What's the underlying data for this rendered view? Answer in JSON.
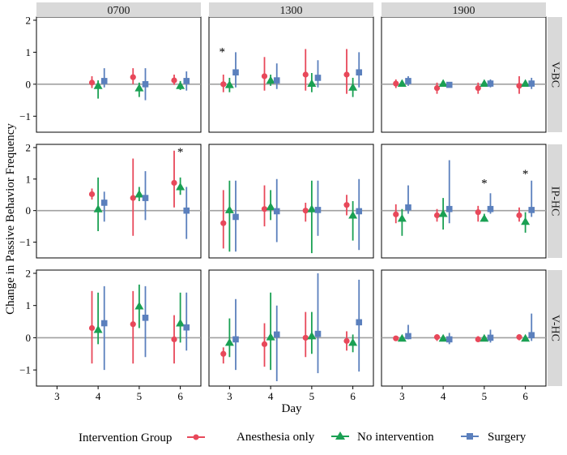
{
  "chart_data": {
    "type": "scatter",
    "subtype": "faceted point-range (mean with interval)",
    "ylabel": "Change in Passive Behavior Frequency",
    "xlabel": "Day",
    "columns": [
      "0700",
      "1300",
      "1900"
    ],
    "rows": [
      "V-BC",
      "IP-HC",
      "V-HC"
    ],
    "x_ticks": [
      3,
      4,
      5,
      6
    ],
    "x_tick_labels": [
      "3",
      "4",
      "5",
      "6"
    ],
    "xlim": [
      2.5,
      6.5
    ],
    "ylim": [
      -1.5,
      2.1
    ],
    "y_ticks": [
      -1,
      0,
      1,
      2
    ],
    "y_tick_labels": [
      "−1",
      "0",
      "1",
      "2"
    ],
    "reference_line": 0,
    "grid": false,
    "legend": {
      "position": "bottom",
      "title": "Intervention Group",
      "entries": [
        "Anesthesia only",
        "No intervention",
        "Surgery"
      ]
    },
    "series": [
      {
        "name": "Anesthesia only",
        "color": "#e8485a",
        "marker": "circle",
        "offset": -0.15
      },
      {
        "name": "No intervention",
        "color": "#1aa053",
        "marker": "triangle",
        "offset": 0.0
      },
      {
        "name": "Surgery",
        "color": "#5b80bd",
        "marker": "square",
        "offset": 0.15
      }
    ],
    "panels": [
      {
        "row": "V-BC",
        "col": "0700",
        "points": [
          {
            "series": 0,
            "day": 4,
            "y": 0.05,
            "lo": -0.12,
            "hi": 0.25
          },
          {
            "series": 1,
            "day": 4,
            "y": -0.05,
            "lo": -0.45,
            "hi": 0.12
          },
          {
            "series": 2,
            "day": 4,
            "y": 0.1,
            "lo": -0.1,
            "hi": 0.5
          },
          {
            "series": 0,
            "day": 5,
            "y": 0.22,
            "lo": 0.0,
            "hi": 0.5
          },
          {
            "series": 1,
            "day": 5,
            "y": -0.12,
            "lo": -0.4,
            "hi": 0.05
          },
          {
            "series": 2,
            "day": 5,
            "y": 0.0,
            "lo": -0.5,
            "hi": 0.5
          },
          {
            "series": 0,
            "day": 6,
            "y": 0.12,
            "lo": -0.02,
            "hi": 0.3
          },
          {
            "series": 1,
            "day": 6,
            "y": -0.05,
            "lo": -0.18,
            "hi": 0.1
          },
          {
            "series": 2,
            "day": 6,
            "y": 0.1,
            "lo": -0.2,
            "hi": 0.4
          }
        ],
        "stars": []
      },
      {
        "row": "V-BC",
        "col": "1300",
        "points": [
          {
            "series": 0,
            "day": 3,
            "y": 0.0,
            "lo": -0.25,
            "hi": 0.3
          },
          {
            "series": 1,
            "day": 3,
            "y": -0.02,
            "lo": -0.25,
            "hi": 0.2
          },
          {
            "series": 2,
            "day": 3,
            "y": 0.37,
            "lo": -0.1,
            "hi": 1.0
          },
          {
            "series": 0,
            "day": 4,
            "y": 0.25,
            "lo": -0.2,
            "hi": 0.85
          },
          {
            "series": 1,
            "day": 4,
            "y": 0.12,
            "lo": -0.05,
            "hi": 0.3
          },
          {
            "series": 2,
            "day": 4,
            "y": 0.12,
            "lo": -0.15,
            "hi": 0.65
          },
          {
            "series": 0,
            "day": 5,
            "y": 0.3,
            "lo": -0.2,
            "hi": 1.1
          },
          {
            "series": 1,
            "day": 5,
            "y": 0.02,
            "lo": -0.25,
            "hi": 0.35
          },
          {
            "series": 2,
            "day": 5,
            "y": 0.2,
            "lo": -0.1,
            "hi": 0.75
          },
          {
            "series": 0,
            "day": 6,
            "y": 0.3,
            "lo": -0.3,
            "hi": 1.1
          },
          {
            "series": 1,
            "day": 6,
            "y": -0.1,
            "lo": -0.4,
            "hi": 0.2
          },
          {
            "series": 2,
            "day": 6,
            "y": 0.37,
            "lo": -0.1,
            "hi": 1.0
          }
        ],
        "stars": [
          {
            "day": 3,
            "offset": -0.18,
            "y": 1.05
          }
        ]
      },
      {
        "row": "V-BC",
        "col": "1900",
        "points": [
          {
            "series": 0,
            "day": 3,
            "y": 0.02,
            "lo": -0.12,
            "hi": 0.15
          },
          {
            "series": 1,
            "day": 3,
            "y": 0.02,
            "lo": -0.05,
            "hi": 0.1
          },
          {
            "series": 2,
            "day": 3,
            "y": 0.1,
            "lo": -0.05,
            "hi": 0.25
          },
          {
            "series": 0,
            "day": 4,
            "y": -0.12,
            "lo": -0.3,
            "hi": 0.05
          },
          {
            "series": 1,
            "day": 4,
            "y": 0.02,
            "lo": -0.05,
            "hi": 0.08
          },
          {
            "series": 2,
            "day": 4,
            "y": -0.02,
            "lo": -0.08,
            "hi": 0.05
          },
          {
            "series": 0,
            "day": 5,
            "y": -0.12,
            "lo": -0.3,
            "hi": 0.05
          },
          {
            "series": 1,
            "day": 5,
            "y": 0.02,
            "lo": -0.05,
            "hi": 0.08
          },
          {
            "series": 2,
            "day": 5,
            "y": 0.02,
            "lo": -0.1,
            "hi": 0.15
          },
          {
            "series": 0,
            "day": 6,
            "y": -0.05,
            "lo": -0.3,
            "hi": 0.25
          },
          {
            "series": 1,
            "day": 6,
            "y": 0.02,
            "lo": -0.05,
            "hi": 0.1
          },
          {
            "series": 2,
            "day": 6,
            "y": 0.02,
            "lo": -0.15,
            "hi": 0.2
          }
        ],
        "stars": []
      },
      {
        "row": "IP-HC",
        "col": "0700",
        "points": [
          {
            "series": 0,
            "day": 4,
            "y": 0.52,
            "lo": 0.35,
            "hi": 0.7
          },
          {
            "series": 1,
            "day": 4,
            "y": 0.05,
            "lo": -0.65,
            "hi": 1.05
          },
          {
            "series": 2,
            "day": 4,
            "y": 0.25,
            "lo": -0.35,
            "hi": 0.6
          },
          {
            "series": 0,
            "day": 5,
            "y": 0.4,
            "lo": -0.8,
            "hi": 1.65
          },
          {
            "series": 1,
            "day": 5,
            "y": 0.52,
            "lo": 0.3,
            "hi": 0.75
          },
          {
            "series": 2,
            "day": 5,
            "y": 0.4,
            "lo": -0.3,
            "hi": 1.25
          },
          {
            "series": 0,
            "day": 6,
            "y": 0.88,
            "lo": 0.1,
            "hi": 1.9
          },
          {
            "series": 1,
            "day": 6,
            "y": 0.75,
            "lo": 0.5,
            "hi": 1.05
          },
          {
            "series": 2,
            "day": 6,
            "y": 0.0,
            "lo": -0.9,
            "hi": 0.75
          }
        ],
        "stars": [
          {
            "day": 6,
            "offset": 0.0,
            "y": 1.9
          }
        ]
      },
      {
        "row": "IP-HC",
        "col": "1300",
        "points": [
          {
            "series": 0,
            "day": 3,
            "y": -0.4,
            "lo": -1.2,
            "hi": 0.65
          },
          {
            "series": 1,
            "day": 3,
            "y": 0.02,
            "lo": -1.3,
            "hi": 0.95
          },
          {
            "series": 2,
            "day": 3,
            "y": -0.2,
            "lo": -1.3,
            "hi": 0.95
          },
          {
            "series": 0,
            "day": 4,
            "y": 0.05,
            "lo": -0.5,
            "hi": 0.8
          },
          {
            "series": 1,
            "day": 4,
            "y": 0.12,
            "lo": -0.3,
            "hi": 0.65
          },
          {
            "series": 2,
            "day": 4,
            "y": -0.02,
            "lo": -1.0,
            "hi": 1.0
          },
          {
            "series": 0,
            "day": 5,
            "y": 0.0,
            "lo": -0.35,
            "hi": 0.25
          },
          {
            "series": 1,
            "day": 5,
            "y": 0.05,
            "lo": -1.35,
            "hi": 0.95
          },
          {
            "series": 2,
            "day": 5,
            "y": 0.02,
            "lo": -0.8,
            "hi": 0.95
          },
          {
            "series": 0,
            "day": 6,
            "y": 0.18,
            "lo": -0.15,
            "hi": 0.5
          },
          {
            "series": 1,
            "day": 6,
            "y": -0.15,
            "lo": -0.95,
            "hi": 0.3
          },
          {
            "series": 2,
            "day": 6,
            "y": -0.02,
            "lo": -1.25,
            "hi": 1.0
          }
        ],
        "stars": []
      },
      {
        "row": "IP-HC",
        "col": "1900",
        "points": [
          {
            "series": 0,
            "day": 3,
            "y": -0.12,
            "lo": -0.4,
            "hi": 0.2
          },
          {
            "series": 1,
            "day": 3,
            "y": -0.25,
            "lo": -0.8,
            "hi": 0.05
          },
          {
            "series": 2,
            "day": 3,
            "y": 0.1,
            "lo": -0.1,
            "hi": 0.8
          },
          {
            "series": 0,
            "day": 4,
            "y": -0.15,
            "lo": -0.35,
            "hi": 0.05
          },
          {
            "series": 1,
            "day": 4,
            "y": -0.1,
            "lo": -0.6,
            "hi": 0.4
          },
          {
            "series": 2,
            "day": 4,
            "y": 0.05,
            "lo": -0.4,
            "hi": 1.6
          },
          {
            "series": 0,
            "day": 5,
            "y": -0.05,
            "lo": -0.35,
            "hi": 0.15
          },
          {
            "series": 1,
            "day": 5,
            "y": -0.25,
            "lo": -0.35,
            "hi": -0.1
          },
          {
            "series": 2,
            "day": 5,
            "y": 0.05,
            "lo": -0.1,
            "hi": 0.55
          },
          {
            "series": 0,
            "day": 6,
            "y": -0.15,
            "lo": -0.35,
            "hi": 0.1
          },
          {
            "series": 1,
            "day": 6,
            "y": -0.35,
            "lo": -0.7,
            "hi": -0.05
          },
          {
            "series": 2,
            "day": 6,
            "y": 0.02,
            "lo": -0.2,
            "hi": 0.95
          }
        ],
        "stars": [
          {
            "day": 5,
            "offset": 0.0,
            "y": 0.9
          },
          {
            "day": 6,
            "offset": 0.0,
            "y": 1.2
          }
        ]
      },
      {
        "row": "V-HC",
        "col": "0700",
        "points": [
          {
            "series": 0,
            "day": 4,
            "y": 0.3,
            "lo": -0.8,
            "hi": 1.45
          },
          {
            "series": 1,
            "day": 4,
            "y": 0.25,
            "lo": -0.2,
            "hi": 1.4
          },
          {
            "series": 2,
            "day": 4,
            "y": 0.45,
            "lo": -1.0,
            "hi": 1.6
          },
          {
            "series": 0,
            "day": 5,
            "y": 0.42,
            "lo": -0.8,
            "hi": 1.45
          },
          {
            "series": 1,
            "day": 5,
            "y": 0.98,
            "lo": 0.3,
            "hi": 1.65
          },
          {
            "series": 2,
            "day": 5,
            "y": 0.62,
            "lo": -0.6,
            "hi": 1.6
          },
          {
            "series": 0,
            "day": 6,
            "y": -0.05,
            "lo": -0.8,
            "hi": 0.7
          },
          {
            "series": 1,
            "day": 6,
            "y": 0.45,
            "lo": -0.15,
            "hi": 1.4
          },
          {
            "series": 2,
            "day": 6,
            "y": 0.32,
            "lo": -0.4,
            "hi": 1.4
          }
        ],
        "stars": []
      },
      {
        "row": "V-HC",
        "col": "1300",
        "points": [
          {
            "series": 0,
            "day": 3,
            "y": -0.5,
            "lo": -0.8,
            "hi": -0.3
          },
          {
            "series": 1,
            "day": 3,
            "y": -0.15,
            "lo": -0.6,
            "hi": 0.6
          },
          {
            "series": 2,
            "day": 3,
            "y": -0.05,
            "lo": -1.0,
            "hi": 1.2
          },
          {
            "series": 0,
            "day": 4,
            "y": -0.2,
            "lo": -0.9,
            "hi": 0.45
          },
          {
            "series": 1,
            "day": 4,
            "y": 0.02,
            "lo": -1.0,
            "hi": 1.4
          },
          {
            "series": 2,
            "day": 4,
            "y": 0.1,
            "lo": -1.35,
            "hi": 1.0
          },
          {
            "series": 0,
            "day": 5,
            "y": 0.0,
            "lo": -0.6,
            "hi": 0.8
          },
          {
            "series": 1,
            "day": 5,
            "y": 0.05,
            "lo": -0.5,
            "hi": 0.8
          },
          {
            "series": 2,
            "day": 5,
            "y": 0.12,
            "lo": -1.1,
            "hi": 2.0
          },
          {
            "series": 0,
            "day": 6,
            "y": -0.1,
            "lo": -0.4,
            "hi": 0.2
          },
          {
            "series": 1,
            "day": 6,
            "y": -0.15,
            "lo": -0.45,
            "hi": 0.1
          },
          {
            "series": 2,
            "day": 6,
            "y": 0.48,
            "lo": -1.05,
            "hi": 1.8
          }
        ],
        "stars": []
      },
      {
        "row": "V-HC",
        "col": "1900",
        "points": [
          {
            "series": 0,
            "day": 3,
            "y": -0.02,
            "lo": -0.1,
            "hi": 0.05
          },
          {
            "series": 1,
            "day": 3,
            "y": -0.02,
            "lo": -0.08,
            "hi": 0.05
          },
          {
            "series": 2,
            "day": 3,
            "y": 0.05,
            "lo": -0.05,
            "hi": 0.4
          },
          {
            "series": 0,
            "day": 4,
            "y": 0.02,
            "lo": -0.1,
            "hi": 0.1
          },
          {
            "series": 1,
            "day": 4,
            "y": -0.02,
            "lo": -0.08,
            "hi": 0.05
          },
          {
            "series": 2,
            "day": 4,
            "y": -0.05,
            "lo": -0.2,
            "hi": 0.15
          },
          {
            "series": 0,
            "day": 5,
            "y": -0.05,
            "lo": -0.12,
            "hi": 0.05
          },
          {
            "series": 1,
            "day": 5,
            "y": -0.02,
            "lo": -0.08,
            "hi": 0.05
          },
          {
            "series": 2,
            "day": 5,
            "y": 0.0,
            "lo": -0.15,
            "hi": 0.25
          },
          {
            "series": 0,
            "day": 6,
            "y": 0.02,
            "lo": -0.08,
            "hi": 0.1
          },
          {
            "series": 1,
            "day": 6,
            "y": -0.02,
            "lo": -0.08,
            "hi": 0.05
          },
          {
            "series": 2,
            "day": 6,
            "y": 0.08,
            "lo": -0.1,
            "hi": 0.75
          }
        ],
        "stars": []
      }
    ]
  }
}
